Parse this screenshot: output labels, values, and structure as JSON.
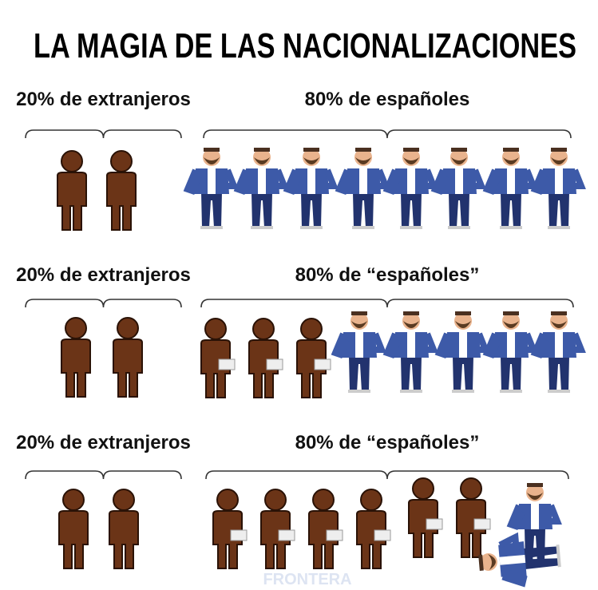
{
  "title": "LA MAGIA DE LAS NACIONALIZACIONES",
  "rows": [
    {
      "left": "20% de extranjeros",
      "right": "80% de españoles"
    },
    {
      "left": "20% de extranjeros",
      "right": "80% de “españoles”"
    },
    {
      "left": "20% de extranjeros",
      "right": "80% de “españoles”"
    }
  ],
  "watermark": "FRONTERA"
}
